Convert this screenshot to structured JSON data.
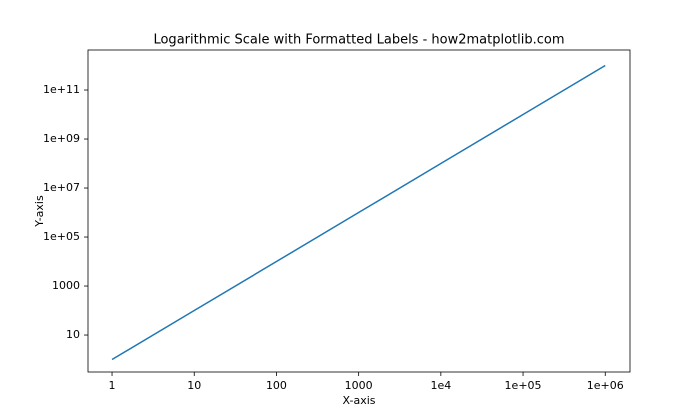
{
  "chart_data": {
    "type": "line",
    "title": "Logarithmic Scale with Formatted Labels - how2matplotlib.com",
    "x_label": "X-axis",
    "y_label": "Y-axis",
    "x": [
      1,
      10,
      100,
      1000,
      10000,
      100000,
      1000000
    ],
    "values": [
      1,
      100,
      10000,
      1000000,
      100000000,
      10000000000,
      1000000000000
    ],
    "color": "#1f77b4",
    "x_scale": "log",
    "y_scale": "log",
    "xlim": [
      0.51,
      2000000
    ],
    "ylim": [
      0.31,
      4300000000000
    ],
    "xticks": [
      1,
      10,
      100,
      1000,
      {
        "value": 10000,
        "label": "1e4"
      },
      {
        "value": 100000,
        "label": "1e+05"
      },
      {
        "value": 1000000,
        "label": "1e+06"
      }
    ],
    "yticks": [
      10,
      1000,
      {
        "value": 100000,
        "label": "1e+05"
      },
      {
        "value": 10000000,
        "label": "1e+07"
      },
      {
        "value": 1000000000,
        "label": "1e+09"
      },
      {
        "value": 100000000000,
        "label": "1e+11"
      }
    ],
    "grid": false
  }
}
